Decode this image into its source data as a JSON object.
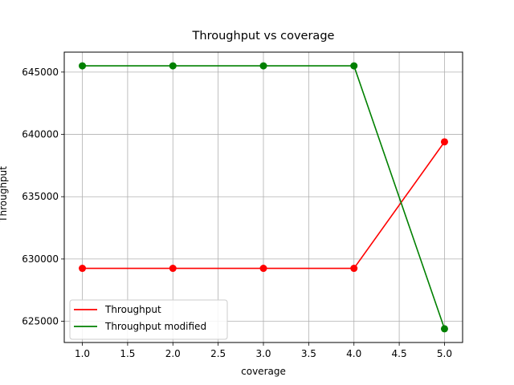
{
  "chart_data": {
    "type": "line",
    "title": "Throughput vs coverage",
    "xlabel": "coverage",
    "ylabel": "Throughput",
    "x": [
      1.0,
      2.0,
      3.0,
      4.0,
      5.0
    ],
    "series": [
      {
        "name": "Throughput",
        "color": "#ff0000",
        "values": [
          629250,
          629250,
          629250,
          629250,
          639400
        ]
      },
      {
        "name": "Throughput modified",
        "color": "#008000",
        "values": [
          645500,
          645500,
          645500,
          645500,
          624400
        ]
      }
    ],
    "xlim": [
      0.8,
      5.2
    ],
    "ylim": [
      623300,
      646600
    ],
    "xticks": [
      "1.0",
      "1.5",
      "2.0",
      "2.5",
      "3.0",
      "3.5",
      "4.0",
      "4.5",
      "5.0"
    ],
    "yticks": [
      "625000",
      "630000",
      "635000",
      "640000",
      "645000"
    ],
    "grid": true,
    "legend_position": "lower-left"
  }
}
